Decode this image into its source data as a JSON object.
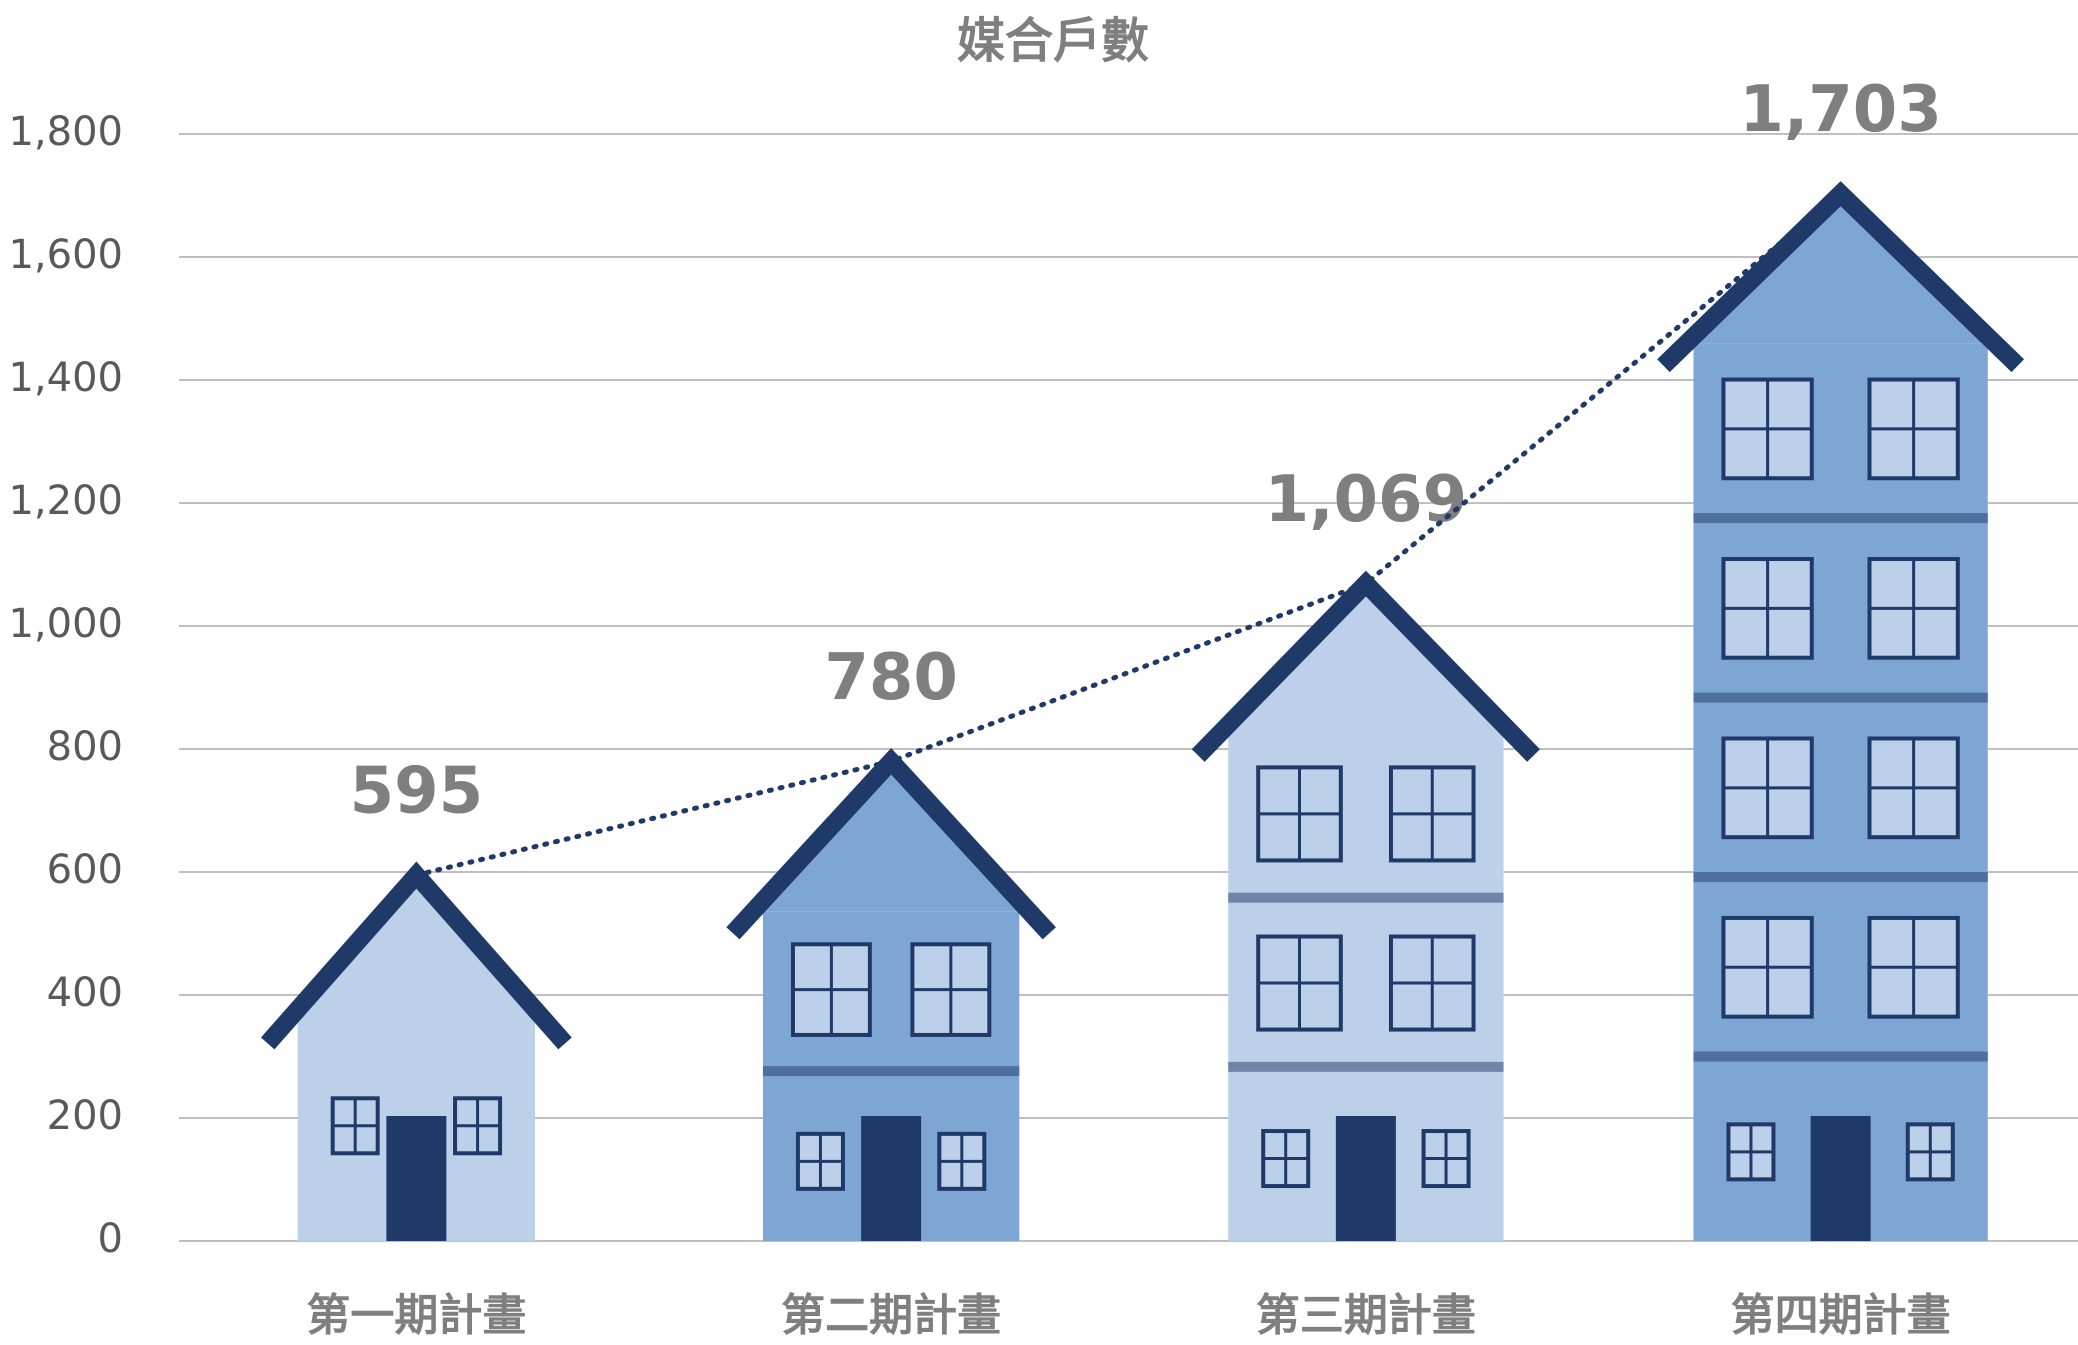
{
  "chart_data": {
    "type": "pictograph-bar",
    "title": "媒合戶數",
    "categories": [
      "第一期計畫",
      "第二期計畫",
      "第三期計畫",
      "第四期計畫"
    ],
    "values": [
      595,
      780,
      1069,
      1703
    ],
    "value_labels": [
      "595",
      "780",
      "1,069",
      "1,703"
    ],
    "ylim": [
      0,
      1800
    ],
    "yticks": [
      0,
      200,
      400,
      600,
      800,
      {
        "value": 1000,
        "label": "1,000"
      },
      {
        "value": 1200,
        "label": "1,200"
      },
      {
        "value": 1400,
        "label": "1,400"
      },
      {
        "value": 1600,
        "label": "1,600"
      },
      {
        "value": 1800,
        "label": "1,800"
      }
    ],
    "grid": true,
    "trend_line": true,
    "colors": {
      "light": "#bcd0ea",
      "mid": "#7ea6d4",
      "dark": "#1f3a68"
    }
  }
}
